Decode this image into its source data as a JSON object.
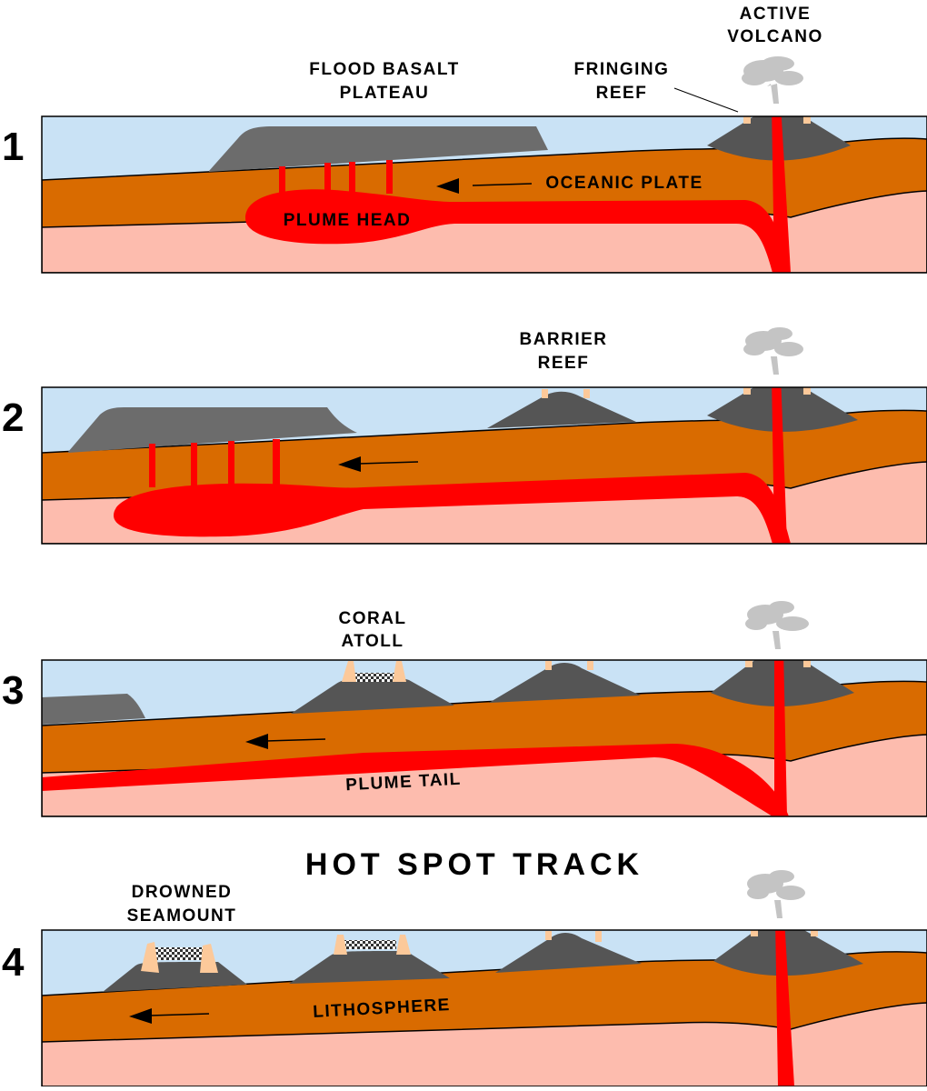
{
  "title": "HOT SPOT TRACK",
  "panel_numbers": [
    "1",
    "2",
    "3",
    "4"
  ],
  "labels": {
    "active_volcano": [
      "ACTIVE",
      "VOLCANO"
    ],
    "flood_basalt_plateau": [
      "FLOOD BASALT",
      "PLATEAU"
    ],
    "fringing_reef": [
      "FRINGING",
      "REEF"
    ],
    "oceanic_plate": "OCEANIC PLATE",
    "plume_head": "PLUME HEAD",
    "barrier_reef": [
      "BARRIER",
      "REEF"
    ],
    "coral_atoll": [
      "CORAL",
      "ATOLL"
    ],
    "plume_tail": "PLUME TAIL",
    "drowned_seamount": [
      "DROWNED",
      "SEAMOUNT"
    ],
    "lithosphere": "LITHOSPHERE"
  },
  "colors": {
    "ocean": "#c9e2f5",
    "plate": "#d96b00",
    "mantle": "#fdbcae",
    "magma": "#ff0000",
    "volcano": "#555555",
    "plateau": "#6c6c6c",
    "reef": "#fcc99a",
    "ash": "#c4c4c4"
  }
}
